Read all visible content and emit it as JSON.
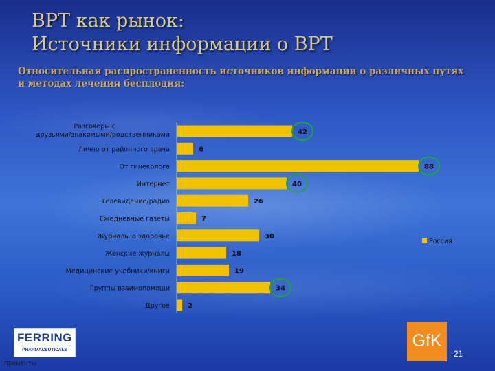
{
  "slide": {
    "title_line1": "ВРТ как рынок:",
    "title_line2": "Источники информации о ВРТ",
    "subtitle": "Относительная распространенность источников информации о различных путях и методах лечения бесплодия:",
    "units_label": "проценты",
    "page_number": "21"
  },
  "logos": {
    "ferring_name": "FERRING",
    "ferring_sub": "PHARMACEUTICALS",
    "gfk_text": "GfK"
  },
  "colors": {
    "bar": "#f2c200",
    "highlight_circle": "#18a83a",
    "title": "#d8c98a",
    "subtitle": "#c8a85e"
  },
  "chart_data": {
    "type": "bar",
    "orientation": "horizontal",
    "categories": [
      "Разговоры с друзьями/знакомыми/родственниками",
      "Лично от районного врача",
      "От гинеколога",
      "Интернет",
      "Телевидение/радио",
      "Ежедневные газеты",
      "Журналы о здоровье",
      "Женские журналы",
      "Медицинские учебники/книги",
      "Группы взаимопомощи",
      "Другое"
    ],
    "series": [
      {
        "name": "Россия",
        "values": [
          42,
          6,
          88,
          40,
          26,
          7,
          30,
          18,
          19,
          34,
          2
        ]
      }
    ],
    "highlighted": [
      0,
      2,
      3,
      9
    ],
    "xlim": [
      0,
      90
    ],
    "legend_position": "right",
    "grid": false
  }
}
